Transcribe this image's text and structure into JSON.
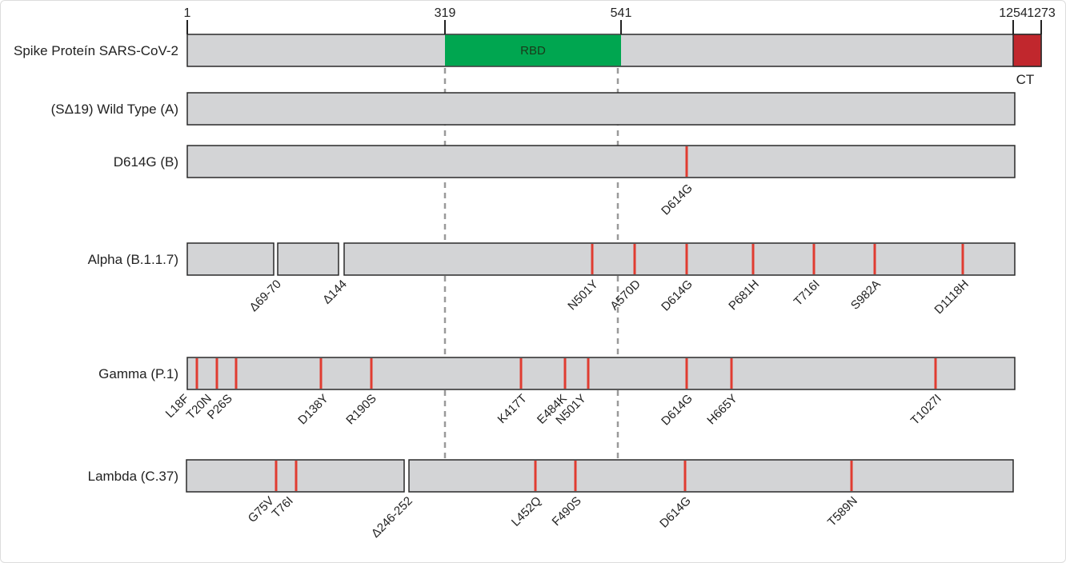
{
  "colors": {
    "bar": "#d3d4d6",
    "rbd": "#00a650",
    "ct": "#c1272d",
    "mutation": "#e03c31",
    "guide": "#9a9a9a"
  },
  "ruler": {
    "ticks": [
      "1",
      "319",
      "541",
      "1254",
      "1273"
    ]
  },
  "spike": {
    "label": "Spike Proteín SARS-CoV-2",
    "rbd_label": "RBD",
    "ct_label": "CT"
  },
  "rows": [
    {
      "label": "(SΔ19) Wild Type (A)",
      "mutations": []
    },
    {
      "label": "D614G (B)",
      "mutations": [
        "D614G"
      ]
    },
    {
      "label": "Alpha (B.1.1.7)",
      "deletions": [
        "Δ69-70",
        "Δ144"
      ],
      "mutations": [
        "N501Y",
        "A570D",
        "D614G",
        "P681H",
        "T716I",
        "S982A",
        "D1118H"
      ]
    },
    {
      "label": "Gamma (P.1)",
      "mutations": [
        "L18F",
        "T20N",
        "P26S",
        "D138Y",
        "R190S",
        "K417T",
        "E484K",
        "N501Y",
        "D614G",
        "H665Y",
        "T1027I"
      ]
    },
    {
      "label": "Lambda (C.37)",
      "deletions": [
        "Δ246-252"
      ],
      "mutations": [
        "G75V",
        "T76I",
        "L452Q",
        "F490S",
        "D614G",
        "T589N"
      ]
    }
  ]
}
